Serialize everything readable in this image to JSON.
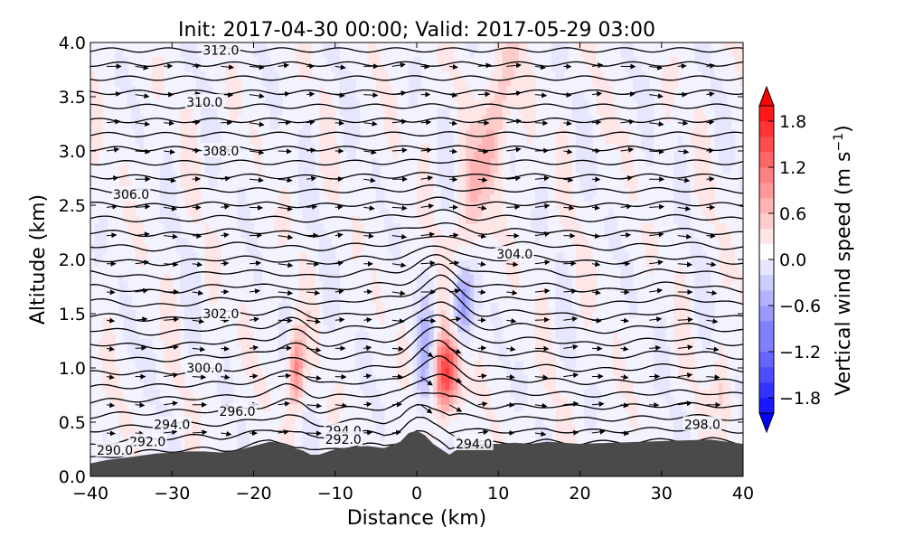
{
  "chart_data": {
    "type": "contour_cross_section",
    "title": "Init: 2017-04-30 00:00; Valid: 2017-05-29 03:00",
    "xlabel": "Distance (km)",
    "ylabel": "Altitude (km)",
    "xlim": [
      -40,
      40
    ],
    "ylim": [
      0.0,
      4.0
    ],
    "xticks": [
      "−40",
      "−30",
      "−20",
      "−10",
      "0",
      "10",
      "20",
      "30",
      "40"
    ],
    "yticks": [
      "0.0",
      "0.5",
      "1.0",
      "1.5",
      "2.0",
      "2.5",
      "3.0",
      "3.5",
      "4.0"
    ],
    "colorbar": {
      "label": "Vertical wind speed (m s$^{-1}$)",
      "label_text": "Vertical wind speed (m s",
      "label_sup": "−1",
      "label_close": ")",
      "range": [
        -2.0,
        2.0
      ],
      "ticks": [
        "1.8",
        "1.2",
        "0.6",
        "0.0",
        "−0.6",
        "−1.2",
        "−1.8"
      ],
      "tick_values": [
        1.8,
        1.2,
        0.6,
        0.0,
        -0.6,
        -1.2,
        -1.8
      ],
      "colormap": "bwr",
      "extend": "both"
    },
    "terrain": {
      "x": [
        -40,
        -38,
        -36,
        -34,
        -32,
        -30,
        -28,
        -26,
        -24,
        -22,
        -20,
        -18,
        -16,
        -15,
        -14,
        -13,
        -12,
        -10,
        -8,
        -6,
        -4,
        -2,
        -1,
        0,
        1,
        2,
        3,
        4,
        5,
        6,
        8,
        10,
        12,
        14,
        16,
        20,
        24,
        28,
        32,
        36,
        38,
        40
      ],
      "height_km": [
        0.12,
        0.15,
        0.17,
        0.19,
        0.21,
        0.22,
        0.23,
        0.23,
        0.22,
        0.24,
        0.28,
        0.32,
        0.3,
        0.26,
        0.24,
        0.2,
        0.2,
        0.25,
        0.27,
        0.28,
        0.26,
        0.32,
        0.4,
        0.42,
        0.38,
        0.3,
        0.25,
        0.2,
        0.25,
        0.28,
        0.3,
        0.3,
        0.31,
        0.3,
        0.32,
        0.3,
        0.31,
        0.32,
        0.33,
        0.34,
        0.32,
        0.3
      ],
      "color": "#4a4a4a"
    },
    "potential_temperature_labels": [
      {
        "text": "312.0",
        "x": -24,
        "y": 3.93
      },
      {
        "text": "310.0",
        "x": -26,
        "y": 3.45
      },
      {
        "text": "308.0",
        "x": -24,
        "y": 3.0
      },
      {
        "text": "306.0",
        "x": -35,
        "y": 2.6
      },
      {
        "text": "304.0",
        "x": 12,
        "y": 2.05
      },
      {
        "text": "302.0",
        "x": -24,
        "y": 1.5
      },
      {
        "text": "300.0",
        "x": -26,
        "y": 1.0
      },
      {
        "text": "296.0",
        "x": -22,
        "y": 0.6
      },
      {
        "text": "294.0",
        "x": -30,
        "y": 0.48
      },
      {
        "text": "294.0",
        "x": -9,
        "y": 0.42
      },
      {
        "text": "292.0",
        "x": -9,
        "y": 0.34
      },
      {
        "text": "294.0",
        "x": 7,
        "y": 0.3
      },
      {
        "text": "298.0",
        "x": 35,
        "y": 0.48
      },
      {
        "text": "292.0",
        "x": -33,
        "y": 0.32
      },
      {
        "text": "290.0",
        "x": -37,
        "y": 0.24
      }
    ],
    "wind_vectors": "horizontal wind arrows, predominantly eastward",
    "colors": {
      "positive": "#ff0000",
      "negative": "#0000ff",
      "terrain": "#4a4a4a",
      "contour": "#000000"
    }
  }
}
